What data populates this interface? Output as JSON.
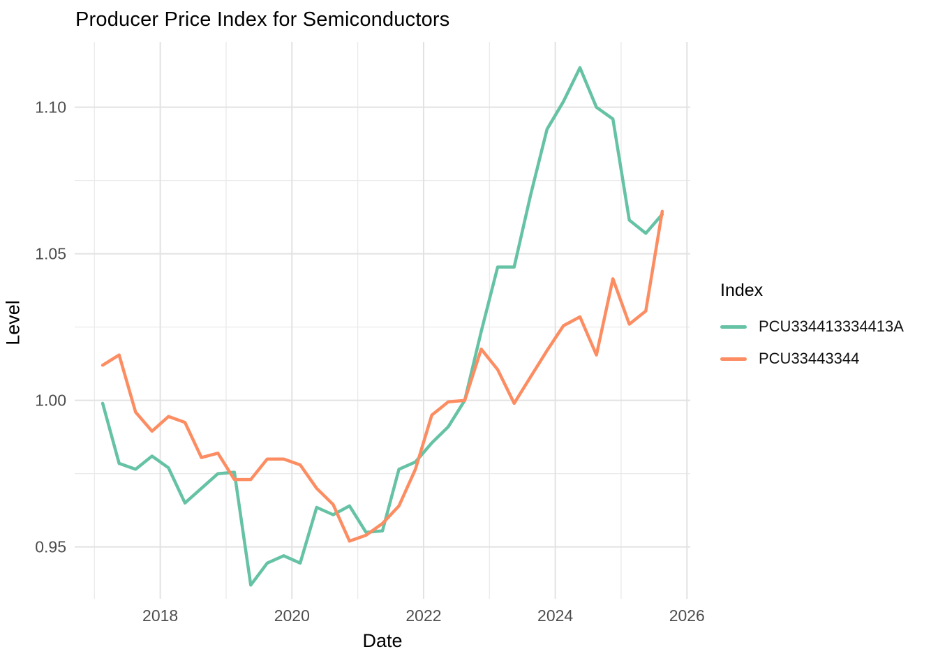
{
  "chart_data": {
    "type": "line",
    "title": "Producer Price Index for Semiconductors",
    "xlabel": "Date",
    "ylabel": "Level",
    "legend_title": "Index",
    "legend_position": "right",
    "grid": "on",
    "x_axis": {
      "min": 2016.7,
      "max": 2026.05,
      "major_ticks": [
        2018,
        2020,
        2022,
        2024,
        2026
      ],
      "minor_ticks": [
        2017,
        2019,
        2021,
        2023,
        2025
      ]
    },
    "y_axis": {
      "min": 0.9323,
      "max": 1.1223,
      "major_ticks": [
        0.95,
        1.0,
        1.05,
        1.1
      ],
      "minor_ticks": [
        0.975,
        1.025,
        1.075
      ]
    },
    "x": [
      2017.125,
      2017.375,
      2017.625,
      2017.875,
      2018.125,
      2018.375,
      2018.625,
      2018.875,
      2019.125,
      2019.375,
      2019.625,
      2019.875,
      2020.125,
      2020.375,
      2020.625,
      2020.875,
      2021.125,
      2021.375,
      2021.625,
      2021.875,
      2022.125,
      2022.375,
      2022.625,
      2022.875,
      2023.125,
      2023.375,
      2023.625,
      2023.875,
      2024.125,
      2024.375,
      2024.625,
      2024.875,
      2025.125,
      2025.375,
      2025.625
    ],
    "series": [
      {
        "name": "PCU334413334413A",
        "color": "#66C2A5",
        "values": [
          0.999,
          0.9785,
          0.9765,
          0.981,
          0.977,
          0.965,
          0.97,
          0.975,
          0.9755,
          0.937,
          0.9445,
          0.947,
          0.9445,
          0.9635,
          0.961,
          0.964,
          0.955,
          0.9555,
          0.9765,
          0.979,
          0.9855,
          0.991,
          1.0,
          1.0235,
          1.0455,
          1.0455,
          1.07,
          1.0925,
          1.102,
          1.1135,
          1.1,
          1.096,
          1.0615,
          1.057,
          1.0635
        ]
      },
      {
        "name": "PCU33443344",
        "color": "#FC8D62",
        "values": [
          1.012,
          1.0155,
          0.996,
          0.9895,
          0.9945,
          0.9925,
          0.9805,
          0.982,
          0.973,
          0.973,
          0.98,
          0.98,
          0.978,
          0.97,
          0.9645,
          0.952,
          0.954,
          0.958,
          0.964,
          0.9765,
          0.995,
          0.9995,
          1.0,
          1.0175,
          1.0105,
          0.999,
          1.008,
          1.017,
          1.0255,
          1.0285,
          1.0155,
          1.0415,
          1.026,
          1.0305,
          1.0645
        ]
      }
    ]
  },
  "style": {
    "tick_label_color": "#4D4D4D",
    "major_grid_color": "#E2E2E2",
    "minor_grid_color": "#EAEAEA"
  }
}
